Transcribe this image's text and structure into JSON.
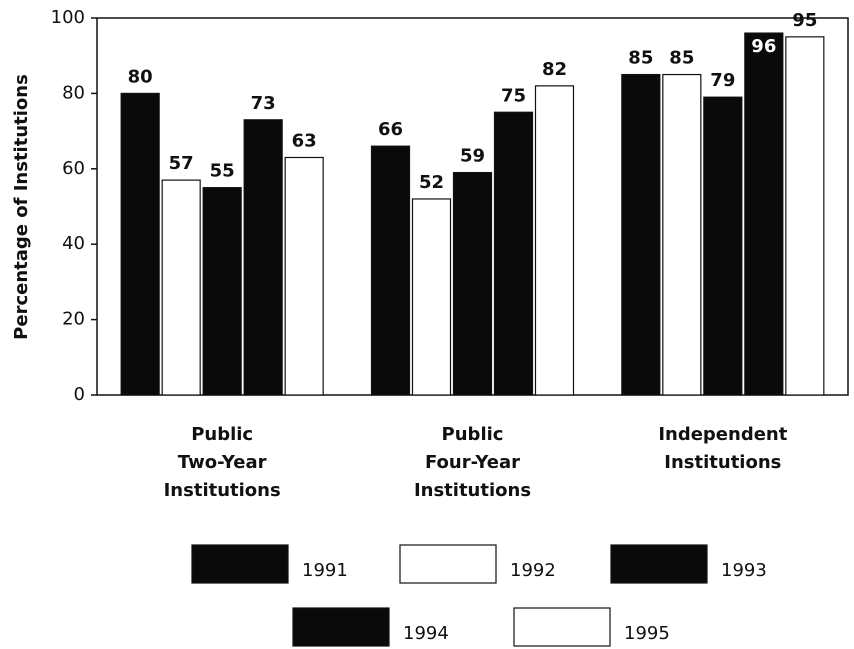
{
  "chart_data": {
    "type": "bar",
    "ylabel": "Percentage of Institutions",
    "categories": [
      "Public Two-Year Institutions",
      "Public Four-Year Institutions",
      "Independent Institutions"
    ],
    "series": [
      {
        "name": "1991",
        "color": "#0a0a0a",
        "values": [
          80,
          66,
          85
        ]
      },
      {
        "name": "1992",
        "color": "#ffffff",
        "values": [
          57,
          52,
          85
        ]
      },
      {
        "name": "1993",
        "color": "#0a0a0a",
        "values": [
          55,
          59,
          79
        ]
      },
      {
        "name": "1994",
        "color": "#0a0a0a",
        "values": [
          73,
          75,
          96
        ]
      },
      {
        "name": "1995",
        "color": "#ffffff",
        "values": [
          63,
          82,
          95
        ]
      }
    ],
    "ylim": [
      0,
      100
    ],
    "yticks": [
      0,
      20,
      40,
      60,
      80,
      100
    ],
    "grid": false
  }
}
